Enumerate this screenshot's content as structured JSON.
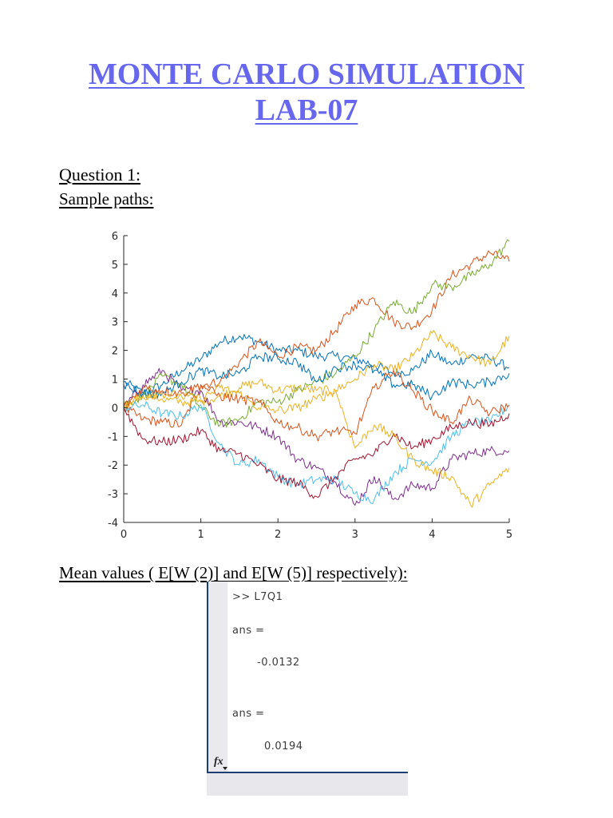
{
  "document": {
    "title_line1": "MONTE CARLO SIMULATION",
    "title_line2": "LAB-07",
    "question_heading": "Question 1:",
    "sample_paths_label": "Sample paths:",
    "mean_values_label": "Mean values ( E[W (2)] and E[W (5)] respectively):",
    "title_color": "#6666ee"
  },
  "console": {
    "command": ">> L7Q1",
    "answers": [
      {
        "label": "ans =",
        "value": "-0.0132"
      },
      {
        "label": "ans =",
        "value": "0.0194"
      }
    ],
    "fx_icon": "fx",
    "border_color": "#1f3f74"
  },
  "chart_data": {
    "type": "line",
    "title": "",
    "xlabel": "",
    "ylabel": "",
    "xlim": [
      0,
      5
    ],
    "ylim": [
      -4,
      6
    ],
    "xticks": [
      0,
      1,
      2,
      3,
      4,
      5
    ],
    "yticks": [
      -4,
      -3,
      -2,
      -1,
      0,
      1,
      2,
      3,
      4,
      5,
      6
    ],
    "grid": false,
    "legend": null,
    "x": [
      0,
      0.25,
      0.5,
      0.75,
      1,
      1.25,
      1.5,
      1.75,
      2,
      2.25,
      2.5,
      2.75,
      3,
      3.25,
      3.5,
      3.75,
      4,
      4.25,
      4.5,
      4.75,
      5
    ],
    "series": [
      {
        "name": "path 1",
        "color": "#0072bd",
        "values": [
          0.9,
          0.5,
          0.8,
          1.3,
          1.7,
          2.3,
          2.5,
          2.3,
          2.0,
          2.0,
          1.8,
          1.8,
          1.7,
          1.5,
          1.2,
          1.3,
          1.9,
          1.5,
          1.8,
          1.7,
          1.4
        ]
      },
      {
        "name": "path 2",
        "color": "#d95319",
        "values": [
          0.0,
          -0.4,
          -0.5,
          -0.6,
          0.8,
          0.9,
          1.6,
          2.3,
          1.8,
          2.1,
          2.0,
          2.7,
          3.6,
          3.8,
          3.0,
          2.8,
          3.4,
          4.6,
          5.0,
          5.4,
          5.1
        ]
      },
      {
        "name": "path 3",
        "color": "#edb120",
        "values": [
          0.0,
          0.5,
          0.3,
          0.2,
          0.2,
          0.4,
          0.7,
          0.9,
          0.6,
          0.7,
          0.6,
          0.6,
          1.0,
          1.5,
          1.3,
          1.8,
          2.6,
          2.1,
          1.8,
          1.5,
          2.5
        ]
      },
      {
        "name": "path 4",
        "color": "#7e2f8e",
        "values": [
          0.0,
          0.8,
          1.3,
          0.6,
          0.6,
          -0.5,
          -0.5,
          -0.7,
          -1.0,
          -1.8,
          -2.1,
          -2.6,
          -3.4,
          -2.4,
          -3.2,
          -2.7,
          -2.8,
          -1.8,
          -1.6,
          -1.5,
          -1.5
        ]
      },
      {
        "name": "path 5",
        "color": "#77ac30",
        "values": [
          0.1,
          0.4,
          1.1,
          0.8,
          0.0,
          -0.6,
          -0.4,
          0.2,
          0.2,
          0.6,
          0.9,
          1.2,
          1.8,
          2.7,
          3.7,
          3.3,
          4.3,
          4.2,
          4.6,
          5.0,
          5.8
        ]
      },
      {
        "name": "path 6",
        "color": "#4dbeee",
        "values": [
          0.0,
          0.1,
          -0.2,
          -0.3,
          0.1,
          -1.3,
          -2.0,
          -1.8,
          -2.4,
          -2.7,
          -2.5,
          -2.5,
          -3.0,
          -3.2,
          -2.3,
          -1.8,
          -1.9,
          -1.0,
          -0.5,
          -0.5,
          0.1
        ]
      },
      {
        "name": "path 7",
        "color": "#a2142f",
        "values": [
          0.0,
          -1.1,
          -1.2,
          -1.1,
          -0.8,
          -1.5,
          -1.6,
          -2.0,
          -2.5,
          -2.6,
          -3.1,
          -2.4,
          -1.8,
          -1.6,
          -0.9,
          -1.4,
          -1.1,
          -0.7,
          -0.5,
          -0.6,
          -0.2
        ]
      },
      {
        "name": "path 8",
        "color": "#0072bd",
        "values": [
          0.8,
          0.5,
          0.5,
          0.9,
          1.3,
          1.1,
          1.2,
          1.8,
          1.7,
          1.6,
          0.9,
          1.4,
          1.5,
          1.3,
          0.8,
          0.8,
          0.4,
          0.9,
          0.8,
          0.9,
          1.2
        ]
      },
      {
        "name": "path 9",
        "color": "#edb120",
        "values": [
          0.0,
          0.4,
          0.5,
          0.4,
          0.3,
          0.7,
          0.5,
          0.0,
          -0.1,
          0.0,
          0.3,
          0.6,
          -1.4,
          -0.6,
          -1.0,
          -1.8,
          -2.2,
          -2.4,
          -3.4,
          -2.7,
          -2.1
        ]
      },
      {
        "name": "path 10",
        "color": "#d95319",
        "values": [
          0.0,
          0.7,
          0.6,
          0.5,
          0.8,
          0.4,
          0.3,
          0.2,
          -0.5,
          -0.7,
          -1.0,
          -0.8,
          -0.9,
          0.7,
          1.3,
          0.6,
          -0.1,
          -0.5,
          0.3,
          -0.2,
          0.1
        ]
      }
    ]
  }
}
